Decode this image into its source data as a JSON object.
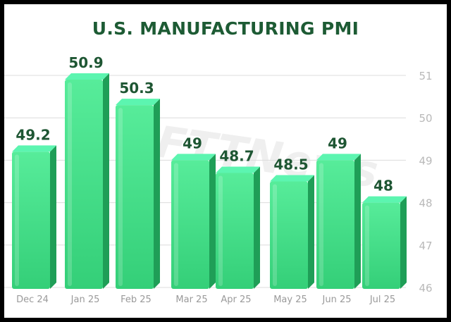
{
  "chart_data": {
    "type": "bar",
    "title": "U.S. MANUFACTURING PMI",
    "categories": [
      "Dec 24",
      "Jan 25",
      "Feb 25",
      "Mar 25",
      "Apr 25",
      "May 25",
      "Jun 25",
      "Jul 25"
    ],
    "values": [
      49.2,
      50.9,
      50.3,
      49,
      48.7,
      48.5,
      49,
      48
    ],
    "data_labels": [
      "49.2",
      "50.9",
      "50.3",
      "49",
      "48.7",
      "48.5",
      "49",
      "48"
    ],
    "y_ticks": [
      "51",
      "50",
      "49",
      "48",
      "47",
      "46"
    ],
    "ylim": [
      46,
      51.2
    ],
    "grid": true,
    "y_axis_position": "right",
    "colors": {
      "bar_face": "#3fe28a",
      "bar_top": "#5cf5b0",
      "bar_side": "#1f9e57",
      "title": "#1d5b34",
      "data_label": "#1e5633",
      "axis_text": "#b9b9b9",
      "grid": "#dcdcdc"
    }
  },
  "watermark_text": "FTTNews"
}
